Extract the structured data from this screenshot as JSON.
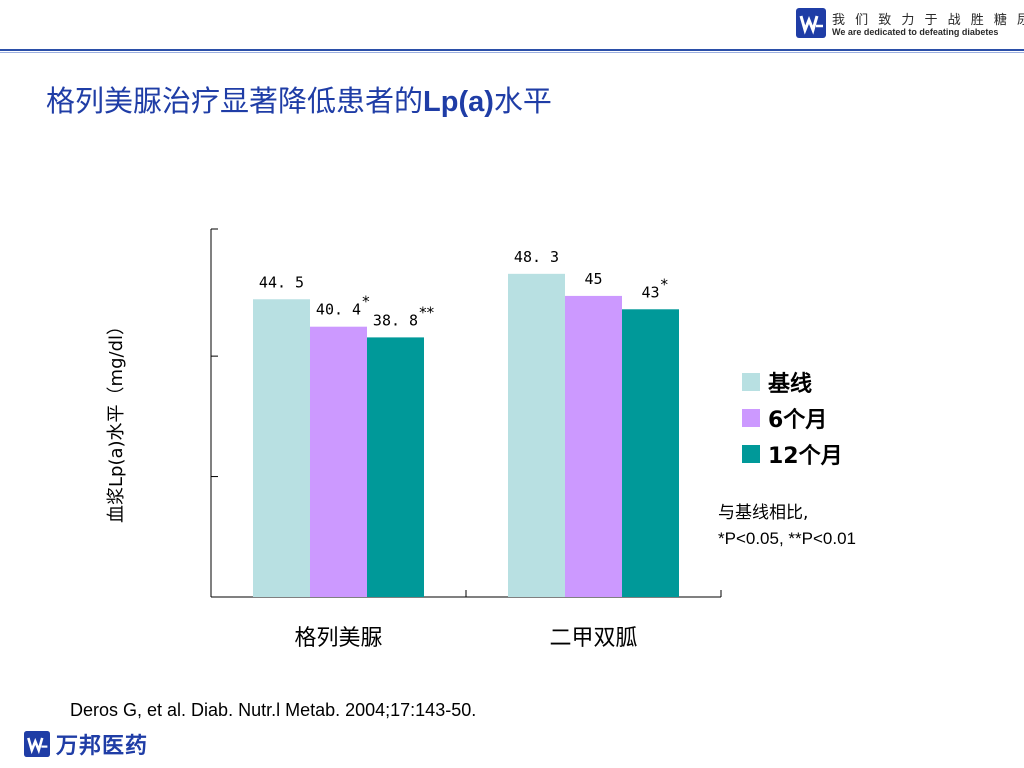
{
  "header": {
    "slogan_cn": "我 们 致 力 于 战 胜 糖 尿 病",
    "slogan_en": "We are dedicated to defeating diabetes",
    "logo_icon": "wanbang-w-logo"
  },
  "title": {
    "prefix": "格列美脲治疗显著降低患者的",
    "bold": "Lp(a)",
    "suffix": "水平"
  },
  "colors": {
    "title": "#1f3da6",
    "rule": "#2b4fa8",
    "baseline": "#b8e0e2",
    "month6": "#cc99ff",
    "month12": "#009999"
  },
  "chart_data": {
    "type": "bar",
    "ylabel": "血浆Lp(a)水平（mg/dl）",
    "categories": [
      "格列美脲",
      "二甲双胍"
    ],
    "ylim": [
      0,
      55
    ],
    "y_ticks": [
      0,
      18,
      36,
      55
    ],
    "grid": false,
    "legend_position": "right",
    "series": [
      {
        "name": "基线",
        "values": [
          44.5,
          48.3
        ],
        "labels": [
          "44. 5",
          "48. 3"
        ],
        "significance": [
          "",
          ""
        ]
      },
      {
        "name": "6个月",
        "values": [
          40.4,
          45
        ],
        "labels": [
          "40. 4",
          "45"
        ],
        "significance": [
          "*",
          ""
        ]
      },
      {
        "name": "12个月",
        "values": [
          38.8,
          43
        ],
        "labels": [
          "38. 8",
          "43"
        ],
        "significance": [
          "**",
          "*"
        ]
      }
    ]
  },
  "stats_note": {
    "line1": "与基线相比,",
    "line2": "*P<0.05, **P<0.01"
  },
  "citation": "Deros G, et al. Diab. Nutr.l Metab. 2004;17:143-50.",
  "footer": {
    "company": "万邦医药",
    "logo_icon": "wanbang-w-logo"
  }
}
